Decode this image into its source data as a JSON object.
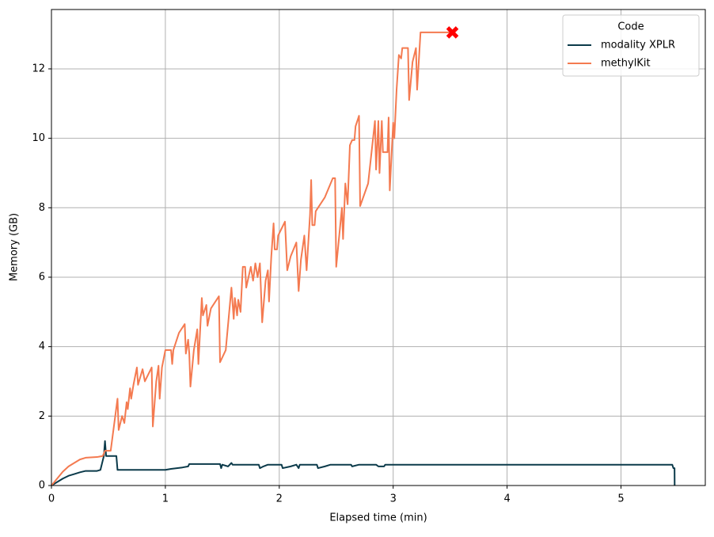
{
  "chart_data": {
    "type": "line",
    "xlabel": "Elapsed time (min)",
    "ylabel": "Memory (GB)",
    "xlim": [
      0,
      5.74
    ],
    "ylim": [
      0,
      13.71
    ],
    "xticks": [
      0,
      1,
      2,
      3,
      4,
      5
    ],
    "yticks": [
      0,
      2,
      4,
      6,
      8,
      10,
      12
    ],
    "grid": true,
    "legend": {
      "title": "Code",
      "loc": "upper right"
    },
    "series": [
      {
        "name": "modality XPLR",
        "color": "#0b3a4a",
        "x": [
          0,
          0.05,
          0.1,
          0.15,
          0.2,
          0.25,
          0.3,
          0.35,
          0.4,
          0.43,
          0.46,
          0.47,
          0.48,
          0.57,
          0.58,
          0.7,
          0.8,
          0.85,
          1.0,
          1.05,
          1.15,
          1.2,
          1.21,
          1.35,
          1.48,
          1.49,
          1.5,
          1.55,
          1.58,
          1.59,
          1.82,
          1.83,
          1.86,
          1.9,
          2.02,
          2.03,
          2.1,
          2.15,
          2.17,
          2.18,
          2.33,
          2.34,
          2.4,
          2.45,
          2.63,
          2.64,
          2.7,
          2.85,
          2.87,
          2.92,
          2.93,
          5.45,
          5.46,
          5.47,
          5.471
        ],
        "values": [
          0,
          0.1,
          0.2,
          0.28,
          0.33,
          0.38,
          0.42,
          0.42,
          0.42,
          0.45,
          0.85,
          1.28,
          0.85,
          0.85,
          0.45,
          0.45,
          0.45,
          0.45,
          0.45,
          0.48,
          0.52,
          0.55,
          0.62,
          0.62,
          0.62,
          0.5,
          0.6,
          0.55,
          0.65,
          0.6,
          0.6,
          0.5,
          0.55,
          0.6,
          0.6,
          0.5,
          0.55,
          0.6,
          0.5,
          0.6,
          0.6,
          0.5,
          0.55,
          0.6,
          0.6,
          0.55,
          0.6,
          0.6,
          0.55,
          0.55,
          0.6,
          0.6,
          0.5,
          0.5,
          0
        ]
      },
      {
        "name": "methylKit",
        "color": "#f47a50",
        "x": [
          0,
          0.05,
          0.1,
          0.15,
          0.2,
          0.25,
          0.3,
          0.4,
          0.45,
          0.47,
          0.52,
          0.58,
          0.59,
          0.62,
          0.64,
          0.66,
          0.67,
          0.69,
          0.7,
          0.72,
          0.75,
          0.76,
          0.8,
          0.82,
          0.88,
          0.89,
          0.92,
          0.94,
          0.95,
          0.97,
          1.0,
          1.05,
          1.06,
          1.07,
          1.12,
          1.17,
          1.18,
          1.2,
          1.21,
          1.22,
          1.25,
          1.28,
          1.29,
          1.32,
          1.33,
          1.36,
          1.37,
          1.4,
          1.47,
          1.48,
          1.53,
          1.58,
          1.6,
          1.61,
          1.63,
          1.64,
          1.66,
          1.68,
          1.7,
          1.71,
          1.75,
          1.77,
          1.79,
          1.81,
          1.83,
          1.85,
          1.88,
          1.9,
          1.91,
          1.93,
          1.95,
          1.96,
          1.98,
          1.99,
          2.05,
          2.07,
          2.1,
          2.15,
          2.17,
          2.19,
          2.22,
          2.24,
          2.27,
          2.28,
          2.29,
          2.31,
          2.32,
          2.4,
          2.47,
          2.49,
          2.5,
          2.55,
          2.56,
          2.58,
          2.6,
          2.62,
          2.64,
          2.66,
          2.67,
          2.7,
          2.71,
          2.78,
          2.84,
          2.85,
          2.87,
          2.88,
          2.9,
          2.91,
          2.95,
          2.96,
          2.97,
          3.0,
          3.01,
          3.03,
          3.05,
          3.07,
          3.08,
          3.1,
          3.13,
          3.14,
          3.17,
          3.2,
          3.21,
          3.24,
          3.52
        ],
        "values": [
          0,
          0.2,
          0.4,
          0.55,
          0.65,
          0.75,
          0.8,
          0.82,
          0.85,
          1.0,
          1.0,
          2.5,
          1.6,
          2.0,
          1.8,
          2.4,
          2.2,
          2.8,
          2.5,
          2.9,
          3.4,
          2.9,
          3.35,
          3.0,
          3.4,
          1.7,
          3.0,
          3.45,
          2.5,
          3.4,
          3.9,
          3.9,
          3.5,
          3.9,
          4.4,
          4.65,
          3.8,
          4.2,
          3.8,
          2.85,
          3.9,
          4.5,
          3.5,
          5.4,
          4.9,
          5.2,
          4.6,
          5.1,
          5.45,
          3.55,
          3.9,
          5.7,
          4.8,
          5.4,
          4.9,
          5.35,
          5.0,
          6.3,
          6.3,
          5.7,
          6.3,
          5.9,
          6.4,
          6.0,
          6.4,
          4.7,
          5.9,
          6.2,
          5.3,
          6.6,
          7.55,
          6.8,
          6.8,
          7.2,
          7.6,
          6.2,
          6.6,
          7.0,
          5.6,
          6.5,
          7.2,
          6.2,
          7.8,
          8.8,
          7.5,
          7.5,
          7.9,
          8.3,
          8.85,
          8.85,
          6.3,
          8.0,
          7.1,
          8.7,
          8.1,
          9.8,
          9.95,
          9.95,
          10.35,
          10.65,
          8.05,
          8.7,
          10.5,
          9.1,
          10.5,
          9.0,
          10.5,
          9.6,
          9.6,
          10.6,
          8.5,
          10.45,
          10.0,
          11.4,
          12.4,
          12.3,
          12.6,
          12.6,
          12.6,
          11.1,
          12.2,
          12.6,
          11.4,
          13.05,
          13.05
        ]
      }
    ],
    "markers": [
      {
        "x": 3.52,
        "y": 13.05,
        "color": "#ff0000",
        "shape": "x"
      }
    ]
  }
}
